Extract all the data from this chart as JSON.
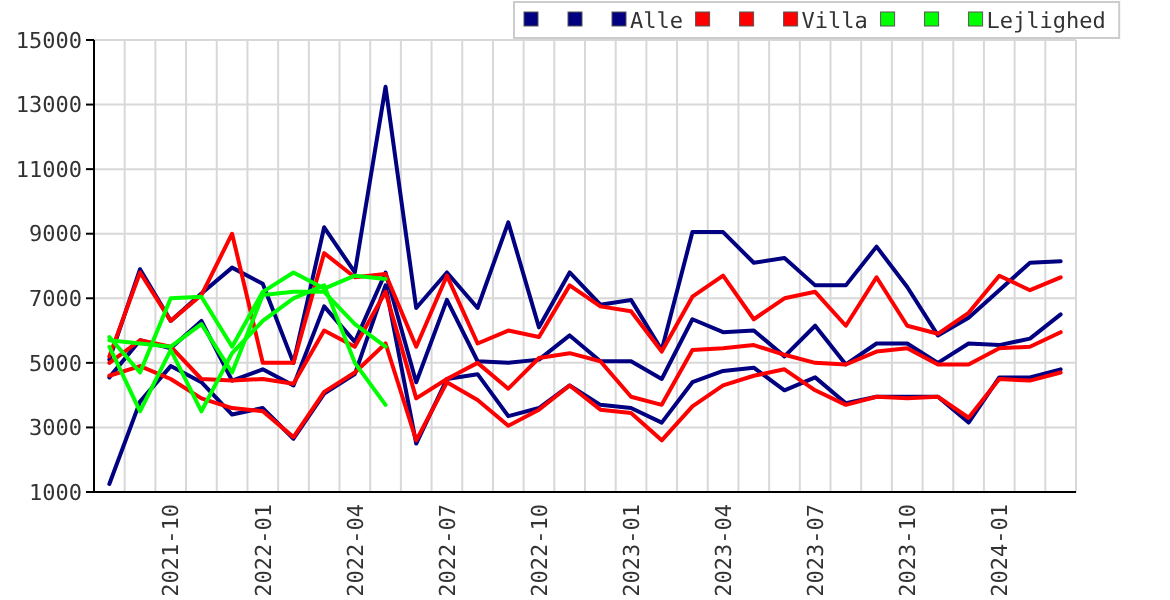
{
  "chart_data": {
    "type": "line",
    "categories": [
      null,
      null,
      "2021-10",
      null,
      null,
      "2022-01",
      null,
      null,
      "2022-04",
      null,
      null,
      "2022-07",
      null,
      null,
      "2022-10",
      null,
      null,
      "2023-01",
      null,
      null,
      "2023-04",
      null,
      null,
      "2023-07",
      null,
      null,
      "2023-10",
      null,
      null,
      "2024-01",
      null,
      null
    ],
    "series": [
      {
        "color": "#000080",
        "values": [
          5100,
          7900,
          6300,
          7150,
          7950,
          7450,
          5000,
          9200,
          7800,
          13550,
          6700,
          7800,
          6700,
          9350,
          6100,
          7800,
          6800,
          6950,
          5400,
          9050,
          9050,
          8100,
          8250,
          7400,
          7400,
          8600,
          7350,
          5850,
          6400,
          7250,
          8100,
          8150
        ]
      },
      {
        "color": "#000080",
        "values": [
          4550,
          5700,
          5450,
          6300,
          4450,
          4800,
          4300,
          6750,
          5650,
          7800,
          4400,
          6950,
          5050,
          5000,
          5100,
          5850,
          5050,
          5050,
          4500,
          6350,
          5950,
          6000,
          5200,
          6150,
          4950,
          5600,
          5600,
          5000,
          5600,
          5550,
          5750,
          6500
        ]
      },
      {
        "name": "Alle",
        "color": "#000080",
        "values": [
          1250,
          3800,
          4900,
          4400,
          3400,
          3600,
          2650,
          4050,
          4650,
          7400,
          2500,
          4500,
          4650,
          3350,
          3600,
          4300,
          3700,
          3600,
          3150,
          4400,
          4750,
          4850,
          4150,
          4550,
          3750,
          3950,
          3950,
          3950,
          3150,
          4550,
          4550,
          4800
        ]
      },
      {
        "color": "#ff0000",
        "values": [
          5200,
          7800,
          6300,
          7100,
          9000,
          5000,
          5000,
          8400,
          7650,
          7750,
          5500,
          7700,
          5600,
          6000,
          5800,
          7400,
          6750,
          6600,
          5350,
          7050,
          7700,
          6350,
          7000,
          7200,
          6150,
          7650,
          6150,
          5900,
          6550,
          7700,
          7250,
          7650
        ]
      },
      {
        "color": "#ff0000",
        "values": [
          5000,
          5700,
          5500,
          4500,
          4450,
          4500,
          4350,
          6000,
          5500,
          7200,
          3900,
          4500,
          5000,
          4200,
          5150,
          5300,
          5050,
          3950,
          3700,
          5400,
          5450,
          5550,
          5250,
          5000,
          4950,
          5350,
          5450,
          4950,
          4950,
          5450,
          5500,
          5950
        ]
      },
      {
        "name": "Villa",
        "color": "#ff0000",
        "values": [
          4600,
          4900,
          4500,
          3900,
          3600,
          3500,
          2700,
          4100,
          4700,
          5600,
          2600,
          4400,
          3850,
          3050,
          3550,
          4300,
          3550,
          3450,
          2600,
          3650,
          4300,
          4600,
          4800,
          4150,
          3700,
          3950,
          3900,
          3950,
          3300,
          4500,
          4450,
          4700
        ]
      },
      {
        "color": "#00ff00",
        "values": [
          5800,
          4700,
          7000,
          7050,
          5500,
          7200,
          7800,
          7300,
          7700,
          7600,
          null,
          null,
          null,
          null,
          null,
          null,
          null,
          null,
          null,
          null,
          null,
          null,
          null,
          null,
          null,
          null,
          null,
          null,
          null,
          null,
          null,
          null
        ]
      },
      {
        "color": "#00ff00",
        "values": [
          5700,
          5600,
          5500,
          6200,
          4700,
          7100,
          7200,
          7200,
          6200,
          5500,
          null,
          null,
          null,
          null,
          null,
          null,
          null,
          null,
          null,
          null,
          null,
          null,
          null,
          null,
          null,
          null,
          null,
          null,
          null,
          null,
          null,
          null
        ]
      },
      {
        "name": "Lejlighed",
        "color": "#00ff00",
        "values": [
          5500,
          3500,
          5400,
          3500,
          5300,
          6300,
          7000,
          7400,
          5000,
          3700,
          null,
          null,
          null,
          null,
          null,
          null,
          null,
          null,
          null,
          null,
          null,
          null,
          null,
          null,
          null,
          null,
          null,
          null,
          null,
          null,
          null,
          null
        ]
      }
    ],
    "ylim": [
      1000,
      15000
    ],
    "yticks": [
      1000,
      3000,
      5000,
      7000,
      9000,
      11000,
      13000,
      15000
    ],
    "grid": true,
    "legend": "top right",
    "marker": "none",
    "line_style": "solid"
  }
}
